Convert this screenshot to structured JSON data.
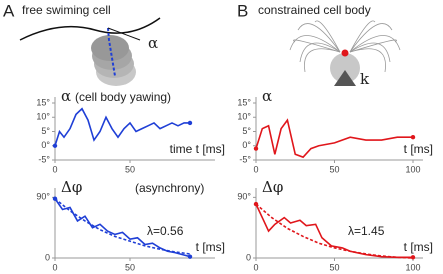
{
  "panels": [
    {
      "letter": "A",
      "caption": "free swiming cell",
      "symbol": "α"
    },
    {
      "letter": "B",
      "caption": "constrained cell body",
      "symbol": "k"
    }
  ],
  "chart_data": [
    {
      "type": "line",
      "y_label": "α",
      "title": "(cell body yawing)",
      "x_label": "time t [ms]",
      "xlim": [
        0,
        100
      ],
      "xticks": [
        0,
        50
      ],
      "ylim": [
        -5,
        15
      ],
      "yticks": [
        {
          "value": 15,
          "label": "15°"
        },
        {
          "value": 10,
          "label": "10°"
        },
        {
          "value": 5,
          "label": "5°"
        },
        {
          "value": 0,
          "label": "0°"
        },
        {
          "value": -5,
          "label": "-5°"
        }
      ],
      "series": [
        {
          "color": "#1f3fd6",
          "dashed": false,
          "x": [
            0,
            3,
            6,
            10,
            14,
            18,
            22,
            26,
            30,
            34,
            38,
            42,
            46,
            50,
            54,
            58,
            62,
            66,
            70,
            74,
            78,
            82,
            86,
            90
          ],
          "values": [
            0,
            5,
            3,
            6,
            11,
            13,
            9,
            2,
            5,
            10,
            6,
            3,
            6,
            8,
            5,
            6,
            7,
            8,
            6,
            7,
            8,
            7,
            8,
            8
          ]
        }
      ]
    },
    {
      "type": "line",
      "y_label": "α",
      "x_label": "t [ms]",
      "xlim": [
        0,
        100
      ],
      "xticks": [
        0,
        50,
        100
      ],
      "ylim": [
        -5,
        15
      ],
      "yticks": [
        {
          "value": 15,
          "label": "15°"
        },
        {
          "value": 10,
          "label": "10°"
        },
        {
          "value": 5,
          "label": "5°"
        },
        {
          "value": 0,
          "label": "0°"
        },
        {
          "value": -5,
          "label": "-5°"
        }
      ],
      "series": [
        {
          "color": "#e0161b",
          "dashed": false,
          "x": [
            0,
            4,
            8,
            12,
            16,
            20,
            25,
            30,
            35,
            40,
            50,
            60,
            70,
            80,
            90,
            100
          ],
          "values": [
            -1,
            6,
            7,
            -3,
            6,
            9,
            -3,
            -4,
            -1,
            0,
            1,
            3,
            2,
            2,
            3,
            3
          ]
        }
      ]
    },
    {
      "type": "line",
      "y_label": "Δφ",
      "title": "(asynchrony)",
      "annotation": "λ=0.56",
      "annotation_color": "#1f3fd6",
      "x_label": "t [ms]",
      "xlim": [
        0,
        100
      ],
      "xticks": [
        0,
        50
      ],
      "ylim": [
        0,
        95
      ],
      "yticks": [
        {
          "value": 90,
          "label": "90°"
        },
        0
      ],
      "series": [
        {
          "color": "#1f3fd6",
          "dashed": false,
          "x": [
            0,
            5,
            10,
            15,
            20,
            25,
            30,
            35,
            40,
            45,
            50,
            55,
            60,
            65,
            70,
            75,
            80,
            85,
            90
          ],
          "values": [
            88,
            72,
            75,
            55,
            62,
            45,
            50,
            40,
            35,
            38,
            28,
            30,
            20,
            22,
            15,
            10,
            8,
            5,
            2
          ]
        },
        {
          "color": "#1f3fd6",
          "dashed": true,
          "x": [
            0,
            10,
            20,
            30,
            40,
            50,
            60,
            70,
            80,
            90
          ],
          "values": [
            88,
            70,
            55,
            42,
            32,
            25,
            18,
            13,
            9,
            6
          ]
        }
      ]
    },
    {
      "type": "line",
      "y_label": "Δφ",
      "annotation": "λ=1.45",
      "annotation_color": "#e0161b",
      "x_label": "t [ms]",
      "xlim": [
        0,
        100
      ],
      "xticks": [
        0,
        50,
        100
      ],
      "ylim": [
        0,
        95
      ],
      "yticks": [
        {
          "value": 90,
          "label": "90°"
        },
        0
      ],
      "series": [
        {
          "color": "#e0161b",
          "dashed": false,
          "x": [
            0,
            5,
            8,
            12,
            18,
            22,
            28,
            32,
            38,
            42,
            48,
            55,
            60,
            70,
            80,
            90,
            100
          ],
          "values": [
            80,
            55,
            40,
            50,
            60,
            52,
            56,
            48,
            50,
            30,
            18,
            15,
            10,
            5,
            2,
            1,
            1
          ]
        },
        {
          "color": "#e0161b",
          "dashed": true,
          "x": [
            0,
            10,
            20,
            30,
            40,
            50,
            60,
            70,
            80,
            90,
            100
          ],
          "values": [
            80,
            60,
            44,
            32,
            22,
            15,
            10,
            6,
            3,
            1,
            0
          ]
        }
      ]
    }
  ]
}
